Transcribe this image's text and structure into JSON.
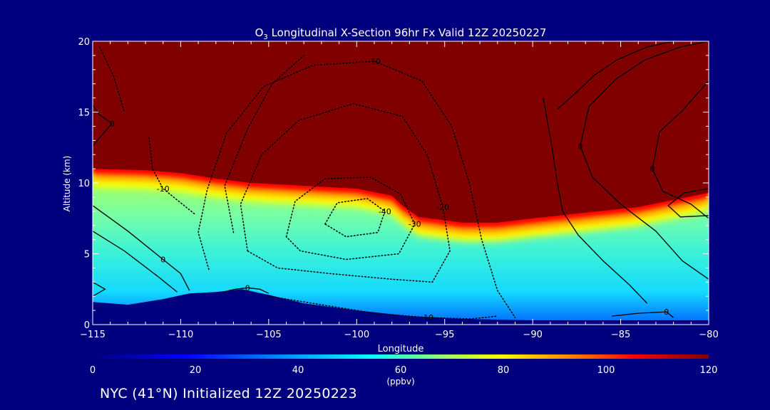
{
  "chart_data": {
    "type": "contour",
    "title_prefix": "O",
    "title_subscript": "3",
    "title_rest": " Longitudinal X-Section 96hr  Fx Valid 12Z 20250227",
    "xlabel": "Longitude",
    "ylabel": "Altitude (km)",
    "xlim": [
      -115,
      -80
    ],
    "ylim": [
      0,
      20
    ],
    "x_ticks": [
      -115,
      -110,
      -105,
      -100,
      -95,
      -90,
      -85,
      -80
    ],
    "x_tick_labels": [
      "−115",
      "−110",
      "−105",
      "−100",
      "−95",
      "−90",
      "−85",
      "−80"
    ],
    "y_ticks": [
      0,
      5,
      10,
      15,
      20
    ],
    "y_tick_labels": [
      "0",
      "5",
      "10",
      "15",
      "20"
    ],
    "filled_field": "ozone",
    "ozone_high_top": [
      {
        "lon": -115,
        "alt": 11.0
      },
      {
        "lon": -112,
        "alt": 10.9
      },
      {
        "lon": -110,
        "alt": 10.7
      },
      {
        "lon": -108,
        "alt": 10.3
      },
      {
        "lon": -106,
        "alt": 10.0
      },
      {
        "lon": -103,
        "alt": 9.8
      },
      {
        "lon": -100,
        "alt": 9.6
      },
      {
        "lon": -98,
        "alt": 9.1
      },
      {
        "lon": -97.5,
        "alt": 8.5
      },
      {
        "lon": -96.5,
        "alt": 7.6
      },
      {
        "lon": -94,
        "alt": 7.2
      },
      {
        "lon": -92,
        "alt": 7.2
      },
      {
        "lon": -90,
        "alt": 7.5
      },
      {
        "lon": -87,
        "alt": 7.9
      },
      {
        "lon": -84,
        "alt": 8.3
      },
      {
        "lon": -82,
        "alt": 8.8
      },
      {
        "lon": -80,
        "alt": 9.3
      }
    ],
    "ozone_surface_boundary": [
      {
        "lon": -115,
        "alt": 1.6
      },
      {
        "lon": -113,
        "alt": 1.4
      },
      {
        "lon": -111,
        "alt": 1.8
      },
      {
        "lon": -109.5,
        "alt": 2.2
      },
      {
        "lon": -108,
        "alt": 2.3
      },
      {
        "lon": -106.5,
        "alt": 2.5
      },
      {
        "lon": -105,
        "alt": 2.1
      },
      {
        "lon": -103,
        "alt": 1.5
      },
      {
        "lon": -100,
        "alt": 1.0
      },
      {
        "lon": -97,
        "alt": 0.6
      },
      {
        "lon": -94,
        "alt": 0.4
      },
      {
        "lon": -90,
        "alt": 0.3
      },
      {
        "lon": -85,
        "alt": 0.3
      },
      {
        "lon": -80,
        "alt": 0.3
      }
    ],
    "contours_solid": [
      {
        "label": "0",
        "points": [
          [
            -115,
            8.4
          ],
          [
            -113,
            6.6
          ],
          [
            -111,
            4.6
          ],
          [
            -110,
            3.6
          ],
          [
            -109.5,
            2.4
          ]
        ]
      },
      {
        "label": "0",
        "points": [
          [
            -107.6,
            2.3
          ],
          [
            -106.9,
            2.5
          ],
          [
            -106.2,
            2.6
          ],
          [
            -105.5,
            2.5
          ],
          [
            -105,
            2.2
          ]
        ]
      },
      {
        "label": "0",
        "points": [
          [
            -115,
            15.5
          ],
          [
            -114.6,
            14.8
          ],
          [
            -113.9,
            14.2
          ],
          [
            -114.6,
            13.2
          ],
          [
            -115,
            12.6
          ]
        ]
      },
      {
        "label": "",
        "points": [
          [
            -115,
            6.6
          ],
          [
            -113.2,
            5.2
          ],
          [
            -111.3,
            3.4
          ],
          [
            -110.2,
            2.3
          ]
        ]
      },
      {
        "label": "",
        "points": [
          [
            -115,
            3.0
          ],
          [
            -114.3,
            2.5
          ],
          [
            -115,
            2.0
          ]
        ]
      },
      {
        "label": "0",
        "points": [
          [
            -85.5,
            0.6
          ],
          [
            -84,
            0.8
          ],
          [
            -82.4,
            0.9
          ],
          [
            -82.0,
            0.5
          ]
        ]
      },
      {
        "label": "",
        "points": [
          [
            -88.6,
            15.2
          ],
          [
            -87.6,
            16.3
          ],
          [
            -86.5,
            17.6
          ],
          [
            -85.2,
            18.7
          ],
          [
            -83.5,
            19.6
          ],
          [
            -82,
            20
          ]
        ]
      },
      {
        "label": "",
        "points": [
          [
            -89.4,
            16.0
          ],
          [
            -88.9,
            12.5
          ],
          [
            -88.6,
            10.0
          ],
          [
            -88.3,
            8.0
          ],
          [
            -87.4,
            6.3
          ],
          [
            -86.0,
            4.5
          ],
          [
            -84.5,
            2.8
          ],
          [
            -83.5,
            1.5
          ]
        ]
      },
      {
        "label": "0",
        "points": [
          [
            -80,
            17.2
          ],
          [
            -81.5,
            15.1
          ],
          [
            -82.8,
            13.6
          ],
          [
            -83.2,
            11.0
          ],
          [
            -82.6,
            9.4
          ],
          [
            -81.0,
            8.5
          ],
          [
            -80,
            7.5
          ]
        ]
      },
      {
        "label": "0",
        "points": [
          [
            -80,
            20
          ],
          [
            -81.6,
            19.6
          ],
          [
            -83.6,
            18.7
          ],
          [
            -85.3,
            17.3
          ],
          [
            -86.8,
            15.4
          ],
          [
            -87.3,
            12.6
          ],
          [
            -86.6,
            10.4
          ],
          [
            -85.0,
            8.5
          ],
          [
            -83.0,
            6.6
          ],
          [
            -81.5,
            4.5
          ],
          [
            -80,
            3.2
          ]
        ]
      },
      {
        "label": "",
        "points": [
          [
            -80,
            9.6
          ],
          [
            -81.4,
            9.3
          ],
          [
            -82.3,
            8.4
          ],
          [
            -81.6,
            7.6
          ],
          [
            -80,
            7.7
          ]
        ]
      }
    ],
    "contours_dotted": [
      {
        "label": "-10",
        "points": [
          [
            -108.4,
            3.9
          ],
          [
            -109.0,
            6.5
          ],
          [
            -108.5,
            9.5
          ],
          [
            -107.4,
            13.5
          ],
          [
            -105.3,
            16.8
          ],
          [
            -102.5,
            18.3
          ],
          [
            -99.0,
            18.6
          ],
          [
            -96.3,
            17.2
          ],
          [
            -94.6,
            14.0
          ],
          [
            -93.6,
            10.0
          ],
          [
            -92.9,
            6.0
          ],
          [
            -92.0,
            2.4
          ],
          [
            -91.0,
            0.5
          ]
        ]
      },
      {
        "label": "-20",
        "points": [
          [
            -106.2,
            5.2
          ],
          [
            -106.6,
            8.5
          ],
          [
            -105.4,
            12.0
          ],
          [
            -103.3,
            14.4
          ],
          [
            -100.2,
            15.6
          ],
          [
            -97.4,
            14.7
          ],
          [
            -96.0,
            12.0
          ],
          [
            -95.1,
            8.3
          ],
          [
            -94.7,
            5.2
          ],
          [
            -95.7,
            3.0
          ],
          [
            -98.0,
            3.2
          ],
          [
            -101.5,
            3.6
          ],
          [
            -104.5,
            4.0
          ],
          [
            -106.2,
            5.2
          ]
        ]
      },
      {
        "label": "-30",
        "points": [
          [
            -104.0,
            6.2
          ],
          [
            -103.5,
            8.7
          ],
          [
            -101.8,
            10.3
          ],
          [
            -99.2,
            10.4
          ],
          [
            -97.5,
            9.2
          ],
          [
            -96.7,
            7.1
          ],
          [
            -97.6,
            5.0
          ],
          [
            -100.6,
            4.6
          ],
          [
            -103.2,
            5.2
          ],
          [
            -104.0,
            6.2
          ]
        ]
      },
      {
        "label": "-40",
        "points": [
          [
            -101.8,
            7.1
          ],
          [
            -101.1,
            8.6
          ],
          [
            -99.4,
            8.9
          ],
          [
            -98.4,
            8.0
          ],
          [
            -98.8,
            6.5
          ],
          [
            -100.6,
            6.2
          ],
          [
            -101.8,
            7.1
          ]
        ]
      },
      {
        "label": "-10",
        "points": [
          [
            -111.8,
            13.2
          ],
          [
            -111.6,
            11.0
          ],
          [
            -111.0,
            9.6
          ],
          [
            -109.2,
            7.8
          ]
        ]
      },
      {
        "label": "-10",
        "points": [
          [
            -105.0,
            2.0
          ],
          [
            -102.0,
            1.4
          ],
          [
            -99.0,
            0.8
          ],
          [
            -96.0,
            0.5
          ],
          [
            -93.5,
            0.4
          ],
          [
            -92.0,
            0.6
          ]
        ]
      },
      {
        "label": "",
        "points": [
          [
            -107.0,
            6.5
          ],
          [
            -107.5,
            9.8
          ],
          [
            -106.2,
            13.8
          ],
          [
            -104.8,
            17.0
          ],
          [
            -103.0,
            19.0
          ]
        ]
      },
      {
        "label": "",
        "points": [
          [
            -114.6,
            19.6
          ],
          [
            -113.8,
            17.5
          ],
          [
            -113.2,
            15.0
          ]
        ]
      }
    ],
    "colorbar": {
      "min": 0,
      "max": 120,
      "ticks": [
        0,
        20,
        40,
        60,
        80,
        100,
        120
      ],
      "tick_labels": [
        "0",
        "20",
        "40",
        "60",
        "80",
        "100",
        "120"
      ],
      "units": "(ppbv)"
    },
    "colors": {
      "background": "#00007f",
      "stops": [
        "#00007f",
        "#0000ff",
        "#00a0ff",
        "#00ffff",
        "#80ff80",
        "#ffff00",
        "#ff8000",
        "#ff0000",
        "#800000"
      ]
    }
  },
  "footer": {
    "text": "NYC (41°N) Initialized 12Z 20250223"
  }
}
